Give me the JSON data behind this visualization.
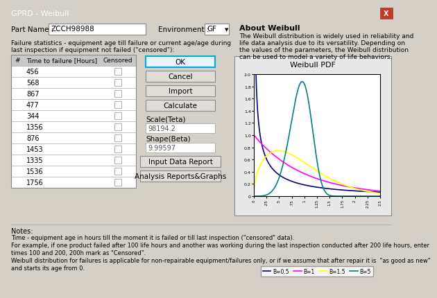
{
  "title_bar": "GPRD - Weibull",
  "title_bar_color": "#5080b0",
  "bg_color": "#d4d0c8",
  "part_name": "ZCCH98988",
  "environment": "GF",
  "about_title": "About Weibull",
  "about_text": "The Weibull distribution is widely used in reliability and\nlife data analysis due to its versatility. Depending on\nthe values of the parameters, the Weibull distribution\ncan be used to model a variety of life behaviors.",
  "failure_text": "Failure statistics - equipment age till failure or current age/age during\nlast inspection if equipment not failed (\"censored\"):",
  "table_header": [
    "#",
    "Time to failure [Hours]",
    "Censored"
  ],
  "table_data": [
    456,
    568,
    867,
    477,
    344,
    1356,
    876,
    1453,
    1335,
    1536,
    1756
  ],
  "scale_label": "Scale(Teta)",
  "scale_value": "98194.2",
  "shape_label": "Shape(Beta)",
  "shape_value": "9.99597",
  "plot_title": "Weibull PDF",
  "legend_entries": [
    "B=0.5",
    "B=1",
    "B=1.5",
    "B=5"
  ],
  "legend_colors": [
    "#000080",
    "#ff00ff",
    "#ffff00",
    "#008080"
  ],
  "notes_title": "Notes:",
  "notes_text1": "Time - equipment age in hours till the moment it is failed or till last inspection (\"censored\" data).",
  "notes_text2": "For example, if one product failed after 100 life hours and another was working during the last inspection conducted after 200 life hours, enter",
  "notes_text3": "times 100 and 200, 200h mark as \"Censored\".",
  "notes_text4": "Weibull distribution for failures is applicable for non-repairable equipment/failures only, or if we assume that after repair it is  \"as good as new\"",
  "notes_text5": "and starts its age from 0."
}
